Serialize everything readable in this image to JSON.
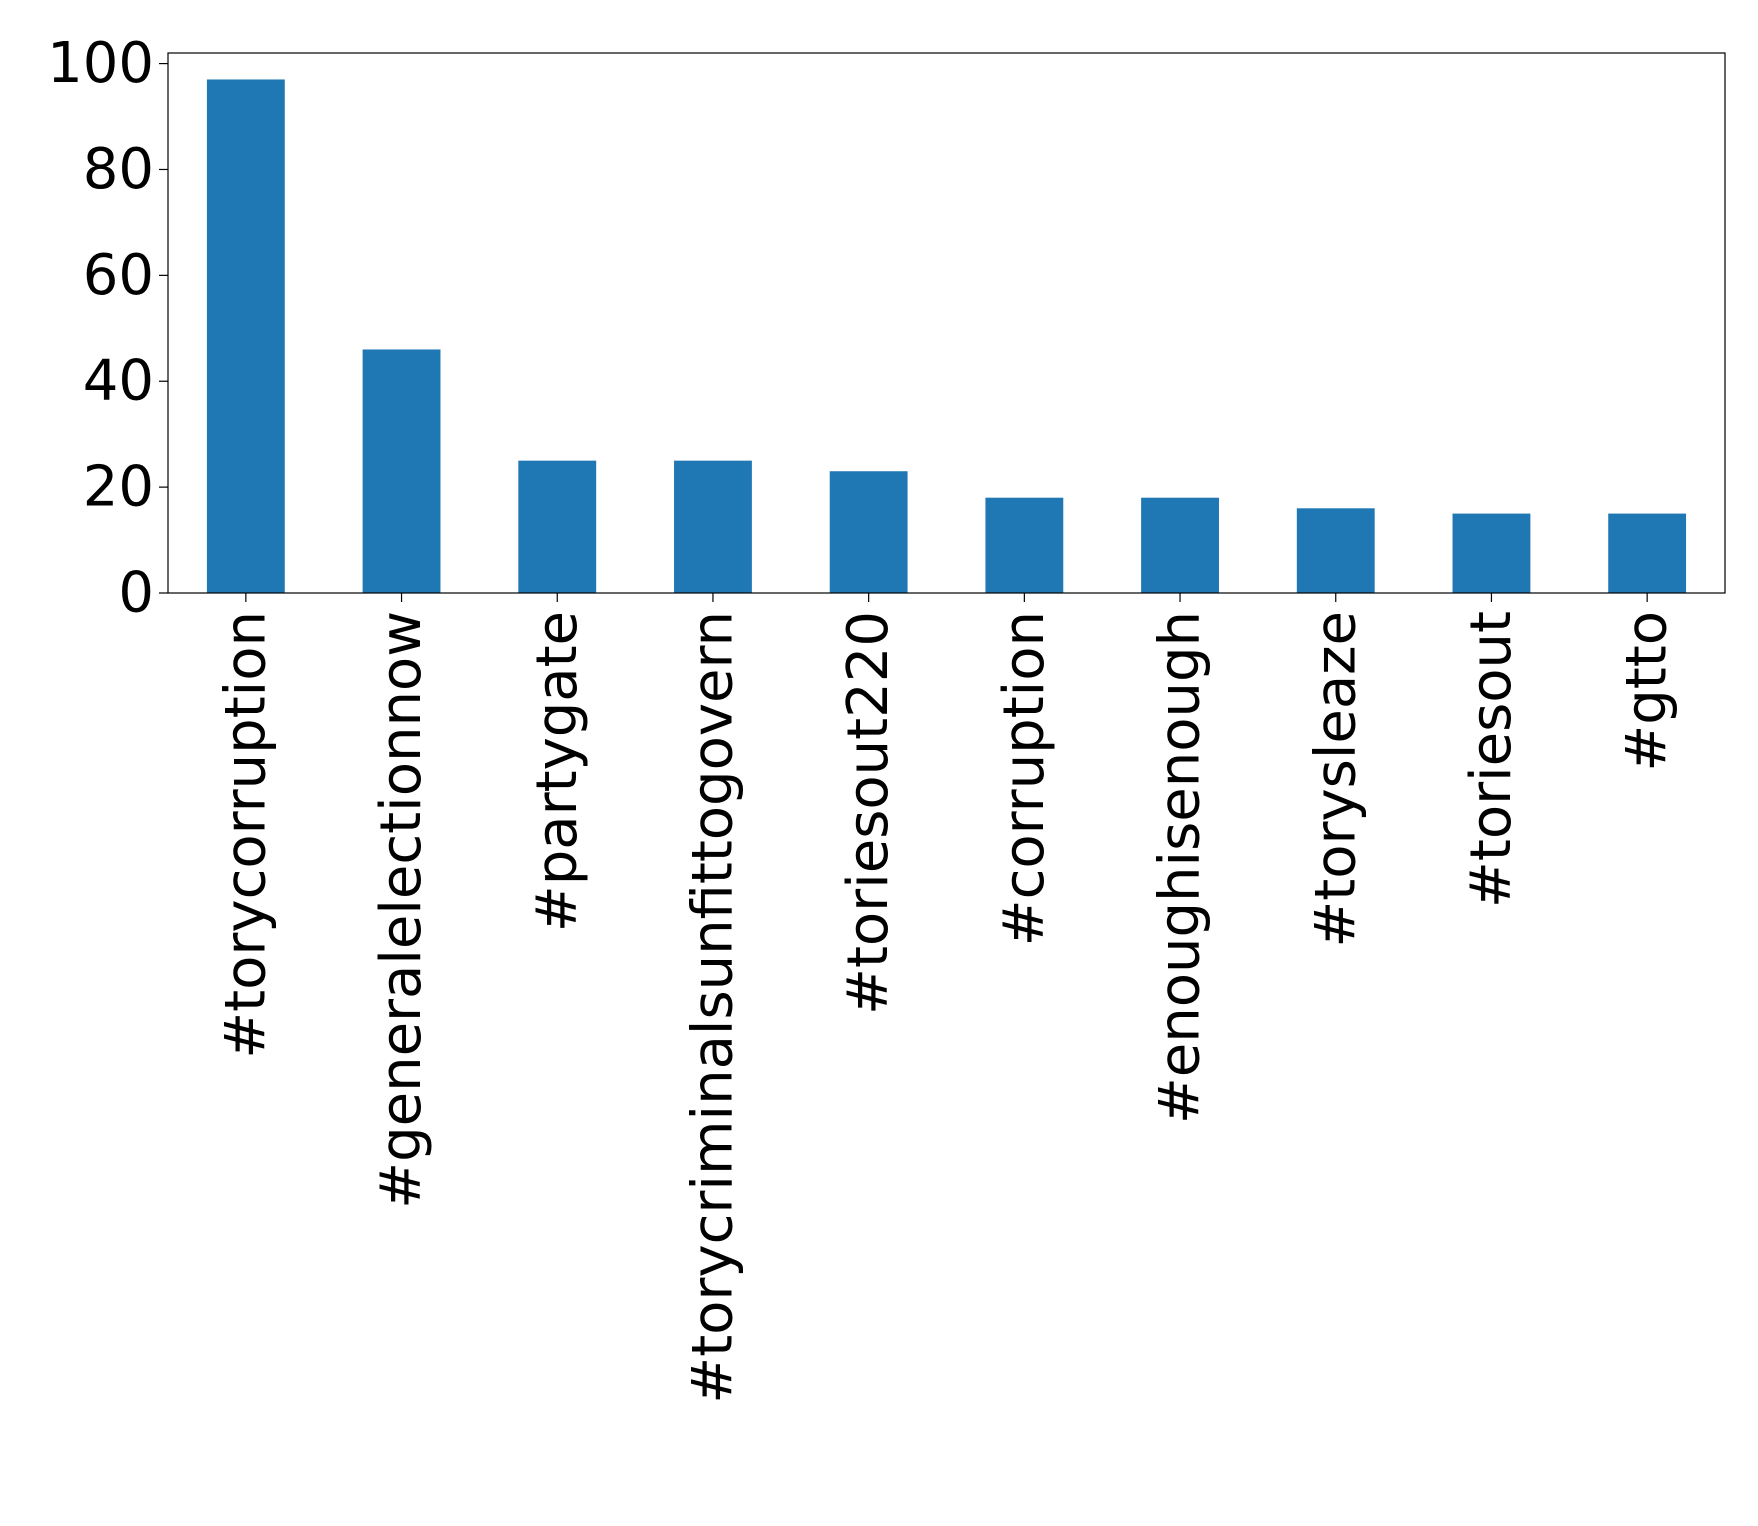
{
  "chart_data": {
    "type": "bar",
    "title": "",
    "xlabel": "",
    "ylabel": "",
    "categories": [
      "#torycorruption",
      "#generalelectionnow",
      "#partygate",
      "#torycriminalsunfittogovern",
      "#toriesout220",
      "#corruption",
      "#enoughisenough",
      "#torysleaze",
      "#toriesout",
      "#gtto"
    ],
    "values": [
      97,
      46,
      25,
      25,
      23,
      18,
      18,
      16,
      15,
      15
    ],
    "ylim": [
      0,
      102
    ],
    "yticks": [
      0,
      20,
      40,
      60,
      80,
      100
    ],
    "grid": false,
    "legend": "none",
    "bar_color": "#1f77b4"
  }
}
